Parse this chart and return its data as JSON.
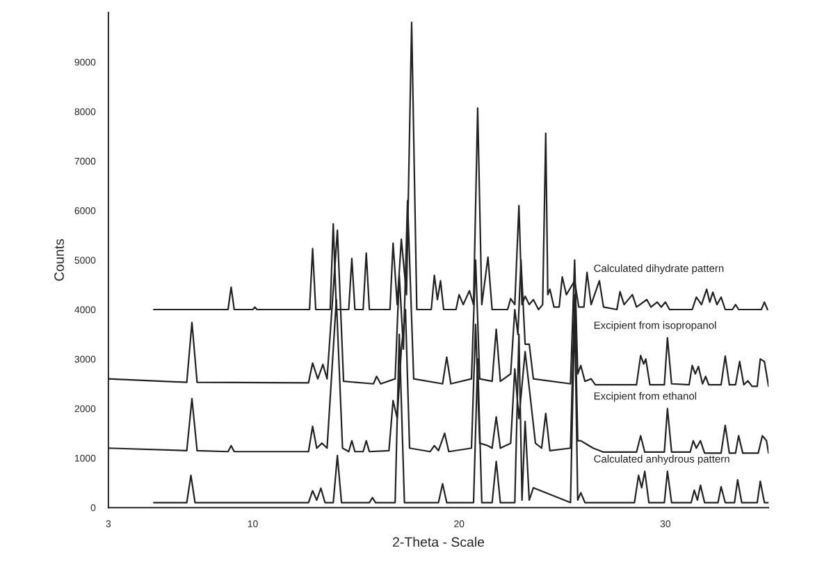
{
  "chart_data": {
    "type": "line",
    "xlabel": "2-Theta - Scale",
    "ylabel": "Counts",
    "xlim": [
      3,
      35
    ],
    "xticks": [
      3,
      10,
      20,
      30
    ],
    "ylim": [
      0,
      10000
    ],
    "yticks": [
      0,
      1000,
      2000,
      3000,
      4000,
      5000,
      6000,
      7000,
      8000,
      9000
    ],
    "annotations": [
      "Calculated dihydrate pattern",
      "Excipient from isopropanol",
      "Excipient from ethanol",
      "Calculated anhydrous pattern"
    ],
    "grid": false,
    "legend": false,
    "marker": "none",
    "line_style": "solid",
    "series": [
      {
        "color": "#222222",
        "x": [
          5.2,
          8.8,
          8.95,
          9.1,
          10.0,
          10.1,
          10.2,
          12.75,
          12.9,
          13.05,
          13.75,
          13.9,
          14.05,
          14.65,
          14.8,
          14.95,
          15.35,
          15.5,
          15.65,
          16.65,
          16.8,
          17.0,
          17.2,
          17.45,
          17.7,
          17.95,
          18.65,
          18.8,
          18.95,
          19.1,
          19.25,
          19.85,
          20.0,
          20.2,
          20.5,
          20.7,
          20.9,
          21.1,
          21.4,
          21.6,
          22.35,
          22.5,
          22.7,
          22.9,
          23.05,
          23.2,
          23.4,
          23.6,
          23.85,
          24.05,
          24.2,
          24.3,
          24.4,
          24.6,
          24.85,
          25.0,
          25.2,
          25.6,
          25.8,
          26.05,
          26.2,
          26.4,
          26.8,
          27.0,
          27.65,
          27.8,
          28.0,
          28.4,
          28.6,
          29.1,
          29.3,
          29.6,
          29.8,
          30.0,
          30.2,
          31.3,
          31.5,
          31.75,
          32.0,
          32.15,
          32.3,
          32.5,
          32.7,
          32.9,
          33.25,
          33.4,
          33.55,
          34.65,
          34.8,
          34.95
        ],
        "values": [
          4000,
          4000,
          4450,
          4000,
          4000,
          4050,
          4000,
          4000,
          5230,
          4000,
          4000,
          5730,
          4000,
          4000,
          5030,
          4000,
          4000,
          5140,
          4000,
          4000,
          5340,
          4100,
          5420,
          4300,
          9800,
          4000,
          4000,
          4690,
          4200,
          4580,
          4000,
          4000,
          4300,
          4100,
          4380,
          4100,
          8070,
          4100,
          5060,
          4000,
          4000,
          4220,
          4100,
          6100,
          4100,
          4270,
          4100,
          4200,
          4000,
          4100,
          7560,
          4300,
          4410,
          4050,
          4050,
          4660,
          4300,
          4580,
          4050,
          4050,
          4750,
          4100,
          4580,
          4050,
          4000,
          4360,
          4100,
          4300,
          4050,
          4200,
          4050,
          4150,
          4050,
          4150,
          4000,
          4000,
          4250,
          4100,
          4410,
          4150,
          4350,
          4100,
          4250,
          4000,
          4000,
          4100,
          4000,
          4000,
          4150,
          4000
        ]
      },
      {
        "color": "#222222",
        "x": [
          3.0,
          6.8,
          7.05,
          7.3,
          12.7,
          12.9,
          13.15,
          13.4,
          13.6,
          14.1,
          14.4,
          15.85,
          16.0,
          16.2,
          16.9,
          17.1,
          17.3,
          17.5,
          17.8,
          19.2,
          19.4,
          19.6,
          20.6,
          20.8,
          21.0,
          21.6,
          21.8,
          22.0,
          22.5,
          22.7,
          22.85,
          23.0,
          23.2,
          23.4,
          23.6,
          25.4,
          25.6,
          25.75,
          25.9,
          26.1,
          26.4,
          26.6,
          28.6,
          28.8,
          28.95,
          29.05,
          29.25,
          29.95,
          30.1,
          30.3,
          31.15,
          31.3,
          31.45,
          31.6,
          31.8,
          31.95,
          32.1,
          32.7,
          32.9,
          33.1,
          33.4,
          33.6,
          33.8,
          34.0,
          34.2,
          34.45,
          34.6,
          34.8,
          35.0
        ],
        "values": [
          2600,
          2530,
          3740,
          2530,
          2520,
          2920,
          2600,
          2890,
          2600,
          5600,
          2550,
          2500,
          2650,
          2500,
          2600,
          4700,
          3200,
          6200,
          2600,
          2500,
          3040,
          2500,
          2600,
          5000,
          2600,
          2550,
          3600,
          2550,
          2700,
          4000,
          3500,
          5000,
          3300,
          3300,
          2600,
          2500,
          5000,
          2700,
          2870,
          2550,
          2600,
          2480,
          2480,
          3070,
          2900,
          3000,
          2480,
          2480,
          3430,
          2500,
          2480,
          2870,
          2700,
          2850,
          2500,
          2650,
          2480,
          2480,
          3060,
          2480,
          2480,
          2950,
          2480,
          2560,
          2450,
          2450,
          3000,
          2950,
          2450
        ]
      },
      {
        "color": "#222222",
        "x": [
          3.0,
          6.8,
          7.05,
          7.3,
          8.8,
          8.95,
          9.1,
          12.7,
          12.9,
          13.1,
          13.35,
          13.6,
          14.05,
          14.35,
          14.65,
          14.8,
          14.95,
          15.35,
          15.5,
          15.65,
          16.6,
          16.8,
          17.0,
          17.2,
          17.4,
          17.6,
          18.6,
          18.8,
          19.0,
          19.3,
          19.5,
          20.6,
          20.8,
          21.0,
          21.4,
          21.6,
          21.8,
          22.0,
          22.5,
          22.7,
          22.9,
          23.2,
          23.5,
          23.7,
          24.0,
          24.2,
          24.4,
          25.4,
          25.6,
          25.75,
          25.9,
          26.3,
          26.5,
          27.0,
          28.6,
          28.8,
          29.0,
          29.95,
          30.1,
          30.3,
          31.2,
          31.35,
          31.5,
          31.7,
          31.9,
          32.7,
          32.9,
          33.1,
          33.4,
          33.55,
          33.75,
          34.5,
          34.7,
          34.9,
          35.0
        ],
        "values": [
          1200,
          1150,
          2200,
          1150,
          1130,
          1250,
          1130,
          1130,
          1640,
          1200,
          1300,
          1200,
          4200,
          1200,
          1130,
          1350,
          1130,
          1130,
          1350,
          1130,
          1150,
          2160,
          1800,
          3200,
          4000,
          1200,
          1130,
          1250,
          1150,
          1500,
          1130,
          1200,
          3700,
          1300,
          1250,
          1200,
          1830,
          1200,
          1300,
          2800,
          1800,
          3150,
          2050,
          1300,
          1200,
          1900,
          1150,
          1200,
          4300,
          1350,
          1350,
          1250,
          1200,
          1120,
          1120,
          1450,
          1120,
          1120,
          2000,
          1120,
          1120,
          1350,
          1200,
          1350,
          1100,
          1100,
          1660,
          1100,
          1100,
          1450,
          1100,
          1100,
          1450,
          1350,
          1100
        ]
      },
      {
        "color": "#222222",
        "x": [
          5.2,
          6.8,
          7.0,
          7.2,
          12.7,
          12.9,
          13.1,
          13.3,
          13.5,
          13.9,
          14.1,
          14.3,
          15.65,
          15.8,
          15.95,
          16.9,
          17.1,
          17.35,
          19.0,
          19.2,
          19.4,
          20.7,
          20.9,
          21.1,
          21.6,
          21.8,
          22.0,
          22.7,
          22.9,
          23.05,
          23.2,
          23.4,
          23.6,
          25.4,
          25.6,
          25.75,
          25.9,
          26.1,
          28.5,
          28.7,
          28.85,
          29.0,
          29.2,
          29.95,
          30.1,
          30.3,
          31.25,
          31.4,
          31.55,
          31.7,
          31.9,
          32.55,
          32.7,
          32.9,
          33.35,
          33.5,
          33.7,
          34.45,
          34.6,
          34.8,
          35.0
        ],
        "values": [
          100,
          100,
          650,
          100,
          100,
          340,
          150,
          390,
          100,
          100,
          1050,
          100,
          100,
          200,
          100,
          100,
          3500,
          100,
          100,
          480,
          100,
          100,
          3000,
          100,
          100,
          930,
          100,
          100,
          3500,
          150,
          1740,
          150,
          400,
          100,
          4000,
          150,
          300,
          100,
          100,
          650,
          400,
          730,
          100,
          100,
          730,
          100,
          100,
          350,
          150,
          450,
          100,
          100,
          420,
          100,
          100,
          560,
          100,
          100,
          530,
          100,
          100
        ]
      }
    ]
  }
}
